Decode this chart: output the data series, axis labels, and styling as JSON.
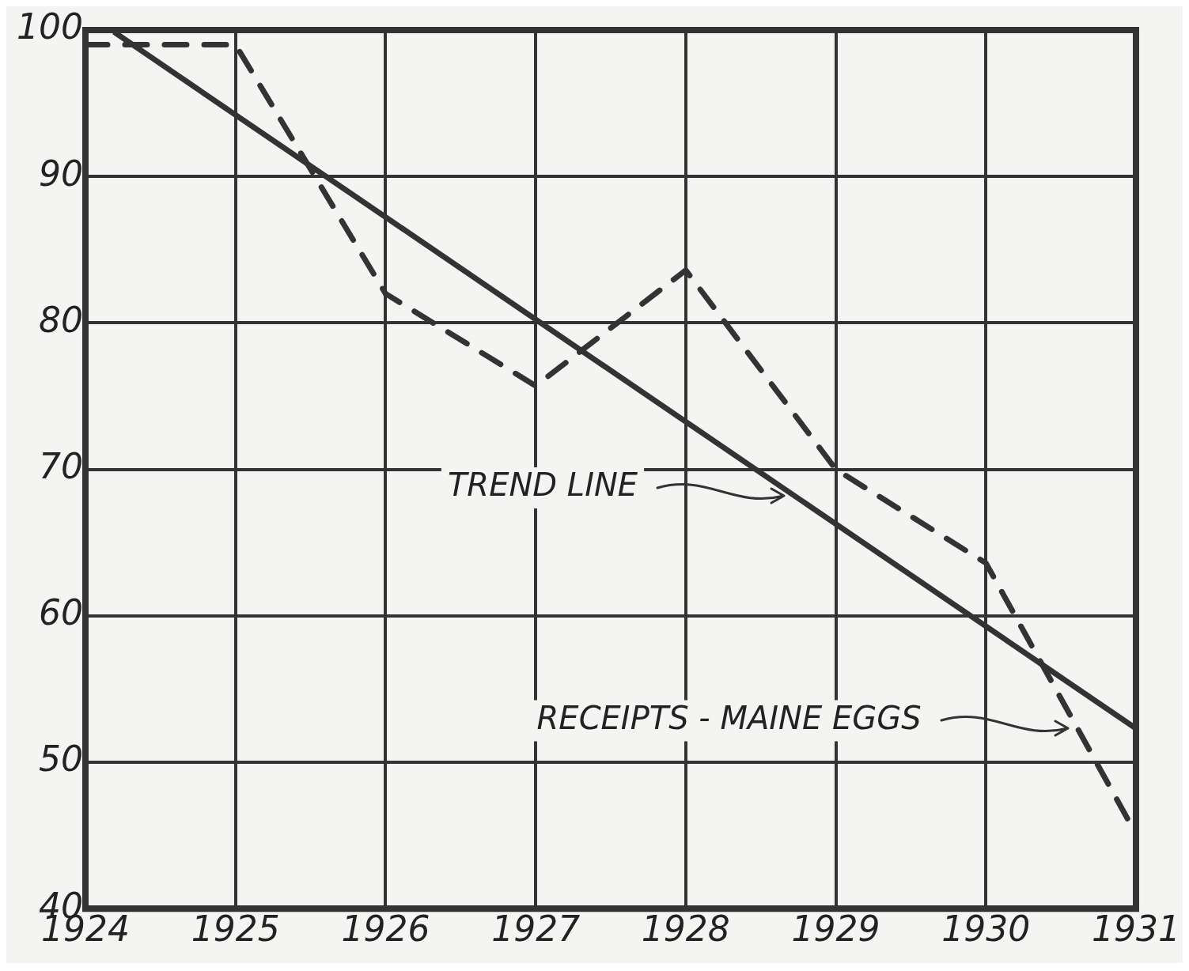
{
  "chart_data": {
    "type": "line",
    "xlim": [
      1924,
      1931
    ],
    "xticks": [
      1924,
      1925,
      1926,
      1927,
      1928,
      1929,
      1930,
      1931
    ],
    "ylim": [
      40,
      100
    ],
    "yticks": [
      40,
      50,
      60,
      70,
      80,
      90,
      {
        "value": 100,
        "label": "100"
      }
    ],
    "grid": true,
    "legend": false,
    "marker": "none",
    "annotations": [
      "TREND LINE",
      "RECEIPTS - MAINE EGGS"
    ],
    "series": [
      {
        "color": "#333333",
        "line_style": "dashed",
        "x": [
          1924,
          1925,
          1926,
          1927,
          1928,
          1929,
          1930,
          1931
        ],
        "values": [
          99,
          99,
          82,
          75.7,
          83.6,
          70,
          63.6,
          45.1
        ]
      },
      {
        "color": "#333333",
        "line_style": "solid",
        "x": [
          1924.2,
          1931
        ],
        "values": [
          99.8,
          52.3
        ]
      }
    ]
  }
}
